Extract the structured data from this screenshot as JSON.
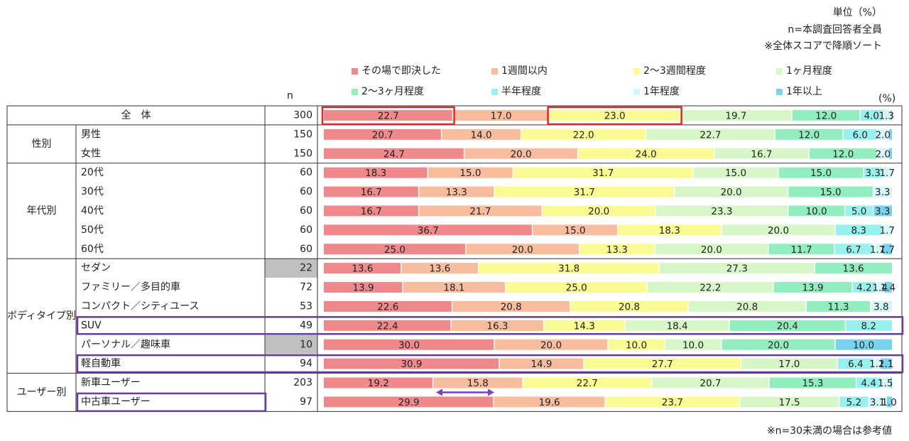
{
  "notes": {
    "unit": "単位（%）",
    "sample": "n=本調査回答者全員",
    "sort": "※全体スコアで降順ソート"
  },
  "n_header": "n",
  "pct_header": "(%)",
  "footnote": "※n=30未満の場合は参考値",
  "colors": {
    "highlight_red": "#d92d2d",
    "highlight_purple": "#6a3d9a",
    "arrow": "#7b3fbf",
    "shade": "#c0c0c0"
  },
  "chart_data": {
    "type": "stacked-bar-horizontal",
    "unit": "%",
    "series": [
      {
        "name": "その場で即決した",
        "color": "#f0898b"
      },
      {
        "name": "1週間以内",
        "color": "#f8bd9e"
      },
      {
        "name": "2～3週間程度",
        "color": "#fbfb94"
      },
      {
        "name": "1ヶ月程度",
        "color": "#d8f7c8"
      },
      {
        "name": "2～3ヶ月程度",
        "color": "#93eebf"
      },
      {
        "name": "半年程度",
        "color": "#98f1ef"
      },
      {
        "name": "1年程度",
        "color": "#d6f6fa"
      },
      {
        "name": "1年以上",
        "color": "#7ad3ee"
      }
    ],
    "groups": [
      {
        "label": "",
        "rows": [
          {
            "label": "全　体",
            "n": "300",
            "values": [
              22.7,
              17.0,
              23.0,
              19.7,
              12.0,
              4.0,
              1.3,
              0.3
            ],
            "labels": [
              "22.7",
              "17.0",
              "23.0",
              "19.7",
              "12.0",
              "4.0",
              "1.3",
              ""
            ],
            "emph": true
          }
        ]
      },
      {
        "label": "性別",
        "rows": [
          {
            "label": "男性",
            "n": "150",
            "values": [
              20.7,
              14.0,
              22.0,
              22.7,
              12.0,
              6.0,
              2.0,
              0.6
            ],
            "labels": [
              "20.7",
              "14.0",
              "22.0",
              "22.7",
              "12.0",
              "6.0",
              "2.0",
              ""
            ]
          },
          {
            "label": "女性",
            "n": "150",
            "values": [
              24.7,
              20.0,
              24.0,
              16.7,
              12.0,
              0.0,
              2.0,
              0.6
            ],
            "labels": [
              "24.7",
              "20.0",
              "24.0",
              "16.7",
              "12.0",
              "",
              "2.0",
              ""
            ]
          }
        ]
      },
      {
        "label": "年代別",
        "rows": [
          {
            "label": "20代",
            "n": "60",
            "values": [
              18.3,
              15.0,
              31.7,
              15.0,
              15.0,
              3.3,
              1.7,
              0.0
            ],
            "labels": [
              "18.3",
              "15.0",
              "31.7",
              "15.0",
              "15.0",
              "3.3",
              "1.7",
              ""
            ]
          },
          {
            "label": "30代",
            "n": "60",
            "values": [
              16.7,
              13.3,
              31.7,
              20.0,
              15.0,
              0.0,
              3.3,
              0.0
            ],
            "labels": [
              "16.7",
              "13.3",
              "31.7",
              "20.0",
              "15.0",
              "",
              "3.3",
              ""
            ]
          },
          {
            "label": "40代",
            "n": "60",
            "values": [
              16.7,
              21.7,
              20.0,
              23.3,
              10.0,
              5.0,
              0.0,
              3.3
            ],
            "labels": [
              "16.7",
              "21.7",
              "20.0",
              "23.3",
              "10.0",
              "5.0",
              "",
              "3.3"
            ]
          },
          {
            "label": "50代",
            "n": "60",
            "values": [
              36.7,
              15.0,
              18.3,
              20.0,
              0.0,
              8.3,
              1.7,
              0.0
            ],
            "labels": [
              "36.7",
              "15.0",
              "18.3",
              "20.0",
              "",
              "8.3",
              "1.7",
              ""
            ]
          },
          {
            "label": "60代",
            "n": "60",
            "values": [
              25.0,
              20.0,
              13.3,
              20.0,
              11.7,
              6.7,
              1.7,
              1.7
            ],
            "labels": [
              "25.0",
              "20.0",
              "13.3",
              "20.0",
              "11.7",
              "6.7",
              "1.7",
              "1.7"
            ]
          }
        ]
      },
      {
        "label": "ボディタイプ別",
        "rows": [
          {
            "label": "セダン",
            "n": "22",
            "values": [
              13.6,
              13.6,
              31.8,
              27.3,
              13.6,
              0.0,
              0.0,
              0.0
            ],
            "labels": [
              "13.6",
              "13.6",
              "31.8",
              "27.3",
              "13.6",
              "",
              "",
              ""
            ],
            "shaded": true
          },
          {
            "label": "ファミリー／多目的車",
            "n": "72",
            "values": [
              13.9,
              18.1,
              25.0,
              22.2,
              13.9,
              4.2,
              1.4,
              1.4
            ],
            "labels": [
              "13.9",
              "18.1",
              "25.0",
              "22.2",
              "13.9",
              "4.2",
              "1.4",
              "1.4"
            ]
          },
          {
            "label": "コンパクト／シティユース",
            "n": "53",
            "values": [
              22.6,
              20.8,
              20.8,
              20.8,
              11.3,
              0.0,
              3.8,
              0.0
            ],
            "labels": [
              "22.6",
              "20.8",
              "20.8",
              "20.8",
              "11.3",
              "",
              "3.8",
              ""
            ]
          },
          {
            "label": "SUV",
            "n": "49",
            "values": [
              22.4,
              16.3,
              14.3,
              18.4,
              20.4,
              8.2,
              0.0,
              0.0
            ],
            "labels": [
              "22.4",
              "16.3",
              "14.3",
              "18.4",
              "20.4",
              "8.2",
              "",
              ""
            ],
            "box": true
          },
          {
            "label": "パーソナル／趣味車",
            "n": "10",
            "values": [
              30.0,
              20.0,
              10.0,
              10.0,
              20.0,
              0.0,
              0.0,
              10.0
            ],
            "labels": [
              "30.0",
              "20.0",
              "10.0",
              "10.0",
              "20.0",
              "",
              "",
              "10.0"
            ],
            "shaded": true
          },
          {
            "label": "軽自動車",
            "n": "94",
            "values": [
              30.9,
              14.9,
              27.7,
              17.0,
              0.0,
              6.4,
              1.1,
              2.1
            ],
            "labels": [
              "30.9",
              "14.9",
              "27.7",
              "17.0",
              "",
              "6.4",
              "1.1",
              "2.1"
            ],
            "box": true
          }
        ]
      },
      {
        "label": "ユーザー別",
        "rows": [
          {
            "label": "新車ユーザー",
            "n": "203",
            "values": [
              19.2,
              15.8,
              22.7,
              20.7,
              15.3,
              4.4,
              1.5,
              0.4
            ],
            "labels": [
              "19.2",
              "15.8",
              "22.7",
              "20.7",
              "15.3",
              "4.4",
              "1.5",
              ""
            ]
          },
          {
            "label": "中古車ユーザー",
            "n": "97",
            "values": [
              29.9,
              19.6,
              23.7,
              17.5,
              0.0,
              5.2,
              3.1,
              1.0
            ],
            "labels": [
              "29.9",
              "19.6",
              "23.7",
              "17.5",
              "",
              "5.2",
              "3.1",
              "1.0"
            ],
            "labelBox": true
          }
        ]
      }
    ]
  }
}
